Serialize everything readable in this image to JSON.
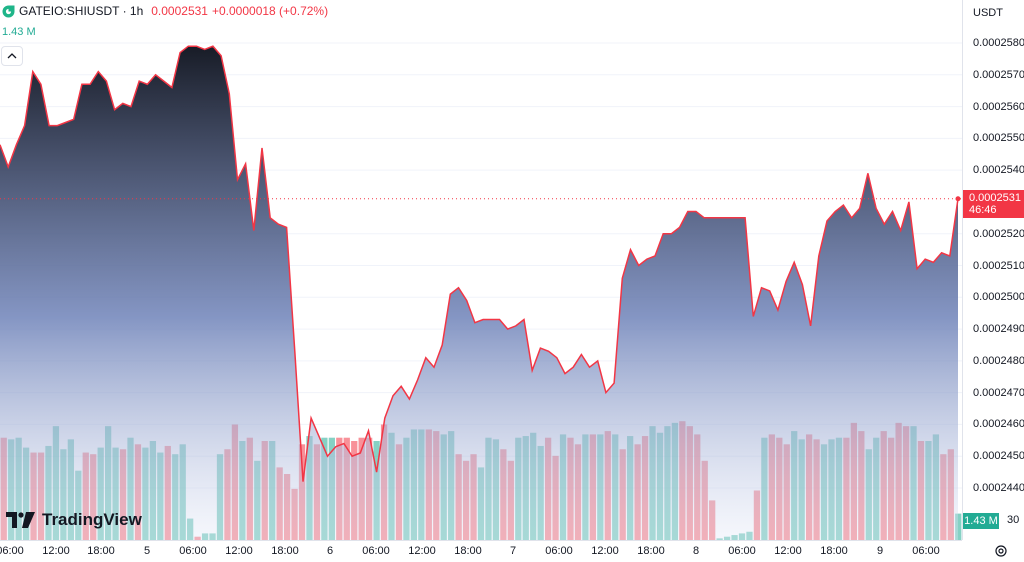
{
  "header": {
    "symbol": "GATEIO:SHIUSDT · 1h",
    "price": "0.0002531",
    "change": "+0.0000018 (+0.72%)"
  },
  "volume_label": "1.43 M",
  "branding": {
    "logo_text": "TradingView"
  },
  "price_axis": {
    "currency": "USDT",
    "last_price": "0.0002531",
    "countdown": "46:46",
    "volume_tag": "1.43 M",
    "bottom_partial_label": "30",
    "ticks": [
      "0.0002580",
      "0.0002570",
      "0.0002560",
      "0.0002550",
      "0.0002540",
      "0.0002520",
      "0.0002510",
      "0.0002500",
      "0.0002490",
      "0.0002480",
      "0.0002470",
      "0.0002460",
      "0.0002450",
      "0.0002440"
    ]
  },
  "time_axis": {
    "labels": [
      "06:00",
      "12:00",
      "18:00",
      "5",
      "06:00",
      "12:00",
      "18:00",
      "6",
      "06:00",
      "12:00",
      "18:00",
      "7",
      "06:00",
      "12:00",
      "18:00",
      "8",
      "06:00",
      "12:00",
      "18:00",
      "9",
      "06:00"
    ]
  },
  "colors": {
    "line": "#f23645",
    "area_top": "#131722",
    "area_bottom": "#e3e8f7",
    "vol_up": "#22ab94",
    "vol_down": "#f23645",
    "price_tag": "#f23645"
  },
  "chart_data": {
    "type": "area",
    "y_unit": "USDT",
    "ylim": [
      0.000243,
      0.000259
    ],
    "price_series": [
      0.0002548,
      0.0002541,
      0.0002548,
      0.0002554,
      0.0002571,
      0.0002567,
      0.0002554,
      0.0002554,
      0.0002555,
      0.0002556,
      0.0002567,
      0.0002567,
      0.0002571,
      0.0002568,
      0.0002559,
      0.0002561,
      0.000256,
      0.0002568,
      0.0002567,
      0.000257,
      0.0002568,
      0.0002566,
      0.0002577,
      0.0002579,
      0.0002579,
      0.0002578,
      0.0002579,
      0.0002576,
      0.0002564,
      0.0002537,
      0.0002542,
      0.0002521,
      0.0002547,
      0.0002525,
      0.0002523,
      0.0002522,
      0.0002483,
      0.0002442,
      0.0002462,
      0.0002456,
      0.000245,
      0.0002453,
      0.0002454,
      0.000245,
      0.0002451,
      0.0002458,
      0.0002445,
      0.0002462,
      0.0002469,
      0.0002472,
      0.0002468,
      0.0002474,
      0.0002481,
      0.0002478,
      0.0002485,
      0.0002501,
      0.0002503,
      0.0002499,
      0.0002492,
      0.0002493,
      0.0002493,
      0.0002493,
      0.000249,
      0.0002491,
      0.0002493,
      0.0002477,
      0.0002484,
      0.0002483,
      0.0002481,
      0.0002476,
      0.0002478,
      0.0002482,
      0.0002478,
      0.000248,
      0.000247,
      0.0002473,
      0.0002506,
      0.0002515,
      0.000251,
      0.0002512,
      0.0002513,
      0.000252,
      0.000252,
      0.0002522,
      0.0002527,
      0.0002527,
      0.0002525,
      0.0002525,
      0.0002525,
      0.0002525,
      0.0002525,
      0.0002525,
      0.0002494,
      0.0002503,
      0.0002502,
      0.0002496,
      0.0002505,
      0.0002511,
      0.0002504,
      0.0002491,
      0.0002513,
      0.0002524,
      0.0002527,
      0.0002529,
      0.0002525,
      0.0002528,
      0.0002539,
      0.0002528,
      0.0002523,
      0.0002527,
      0.0002521,
      0.000253,
      0.0002509,
      0.0002512,
      0.0002511,
      0.0002514,
      0.0002513,
      0.0002531
    ],
    "volume_series": [
      {
        "v": 0.62,
        "up": false
      },
      {
        "v": 0.61,
        "up": true
      },
      {
        "v": 0.62,
        "up": true
      },
      {
        "v": 0.56,
        "up": true
      },
      {
        "v": 0.53,
        "up": false
      },
      {
        "v": 0.53,
        "up": false
      },
      {
        "v": 0.57,
        "up": true
      },
      {
        "v": 0.69,
        "up": true
      },
      {
        "v": 0.55,
        "up": true
      },
      {
        "v": 0.61,
        "up": true
      },
      {
        "v": 0.42,
        "up": true
      },
      {
        "v": 0.53,
        "up": false
      },
      {
        "v": 0.52,
        "up": false
      },
      {
        "v": 0.56,
        "up": true
      },
      {
        "v": 0.69,
        "up": true
      },
      {
        "v": 0.56,
        "up": true
      },
      {
        "v": 0.55,
        "up": false
      },
      {
        "v": 0.62,
        "up": true
      },
      {
        "v": 0.58,
        "up": false
      },
      {
        "v": 0.56,
        "up": true
      },
      {
        "v": 0.6,
        "up": true
      },
      {
        "v": 0.53,
        "up": true
      },
      {
        "v": 0.57,
        "up": false
      },
      {
        "v": 0.52,
        "up": true
      },
      {
        "v": 0.58,
        "up": true
      },
      {
        "v": 0.13,
        "up": true
      },
      {
        "v": 0.02,
        "up": false
      },
      {
        "v": 0.04,
        "up": true
      },
      {
        "v": 0.04,
        "up": true
      },
      {
        "v": 0.52,
        "up": true
      },
      {
        "v": 0.55,
        "up": false
      },
      {
        "v": 0.7,
        "up": false
      },
      {
        "v": 0.6,
        "up": true
      },
      {
        "v": 0.62,
        "up": false
      },
      {
        "v": 0.48,
        "up": true
      },
      {
        "v": 0.6,
        "up": false
      },
      {
        "v": 0.6,
        "up": true
      },
      {
        "v": 0.44,
        "up": false
      },
      {
        "v": 0.4,
        "up": false
      },
      {
        "v": 0.31,
        "up": false
      },
      {
        "v": 0.58,
        "up": false
      },
      {
        "v": 0.63,
        "up": true
      },
      {
        "v": 0.58,
        "up": false
      },
      {
        "v": 0.62,
        "up": true
      },
      {
        "v": 0.62,
        "up": true
      },
      {
        "v": 0.62,
        "up": false
      },
      {
        "v": 0.62,
        "up": false
      },
      {
        "v": 0.6,
        "up": false
      },
      {
        "v": 0.62,
        "up": false
      },
      {
        "v": 0.62,
        "up": false
      },
      {
        "v": 0.6,
        "up": true
      },
      {
        "v": 0.7,
        "up": false
      },
      {
        "v": 0.65,
        "up": true
      },
      {
        "v": 0.58,
        "up": false
      },
      {
        "v": 0.62,
        "up": true
      },
      {
        "v": 0.67,
        "up": true
      },
      {
        "v": 0.67,
        "up": true
      },
      {
        "v": 0.67,
        "up": false
      },
      {
        "v": 0.66,
        "up": false
      },
      {
        "v": 0.64,
        "up": true
      },
      {
        "v": 0.66,
        "up": true
      },
      {
        "v": 0.52,
        "up": false
      },
      {
        "v": 0.48,
        "up": false
      },
      {
        "v": 0.52,
        "up": false
      },
      {
        "v": 0.44,
        "up": true
      },
      {
        "v": 0.62,
        "up": true
      },
      {
        "v": 0.61,
        "up": true
      },
      {
        "v": 0.55,
        "up": false
      },
      {
        "v": 0.48,
        "up": false
      },
      {
        "v": 0.62,
        "up": true
      },
      {
        "v": 0.63,
        "up": true
      },
      {
        "v": 0.65,
        "up": true
      },
      {
        "v": 0.57,
        "up": true
      },
      {
        "v": 0.62,
        "up": false
      },
      {
        "v": 0.51,
        "up": false
      },
      {
        "v": 0.64,
        "up": true
      },
      {
        "v": 0.62,
        "up": false
      },
      {
        "v": 0.58,
        "up": false
      },
      {
        "v": 0.64,
        "up": true
      },
      {
        "v": 0.64,
        "up": false
      },
      {
        "v": 0.64,
        "up": true
      },
      {
        "v": 0.66,
        "up": false
      },
      {
        "v": 0.64,
        "up": true
      },
      {
        "v": 0.55,
        "up": false
      },
      {
        "v": 0.63,
        "up": true
      },
      {
        "v": 0.58,
        "up": false
      },
      {
        "v": 0.63,
        "up": false
      },
      {
        "v": 0.69,
        "up": true
      },
      {
        "v": 0.65,
        "up": true
      },
      {
        "v": 0.69,
        "up": true
      },
      {
        "v": 0.71,
        "up": true
      },
      {
        "v": 0.72,
        "up": false
      },
      {
        "v": 0.69,
        "up": false
      },
      {
        "v": 0.64,
        "up": false
      },
      {
        "v": 0.48,
        "up": false
      },
      {
        "v": 0.24,
        "up": false
      },
      {
        "v": 0.01,
        "up": true
      },
      {
        "v": 0.02,
        "up": true
      },
      {
        "v": 0.03,
        "up": true
      },
      {
        "v": 0.04,
        "up": true
      },
      {
        "v": 0.05,
        "up": true
      },
      {
        "v": 0.3,
        "up": false
      },
      {
        "v": 0.62,
        "up": true
      },
      {
        "v": 0.64,
        "up": false
      },
      {
        "v": 0.62,
        "up": false
      },
      {
        "v": 0.58,
        "up": false
      },
      {
        "v": 0.66,
        "up": true
      },
      {
        "v": 0.61,
        "up": true
      },
      {
        "v": 0.64,
        "up": false
      },
      {
        "v": 0.61,
        "up": false
      },
      {
        "v": 0.58,
        "up": true
      },
      {
        "v": 0.61,
        "up": true
      },
      {
        "v": 0.62,
        "up": true
      },
      {
        "v": 0.62,
        "up": false
      },
      {
        "v": 0.71,
        "up": false
      },
      {
        "v": 0.66,
        "up": false
      },
      {
        "v": 0.55,
        "up": true
      },
      {
        "v": 0.62,
        "up": true
      },
      {
        "v": 0.66,
        "up": false
      },
      {
        "v": 0.62,
        "up": false
      },
      {
        "v": 0.71,
        "up": false
      },
      {
        "v": 0.69,
        "up": false
      },
      {
        "v": 0.69,
        "up": true
      },
      {
        "v": 0.6,
        "up": false
      },
      {
        "v": 0.6,
        "up": true
      },
      {
        "v": 0.64,
        "up": true
      },
      {
        "v": 0.52,
        "up": false
      },
      {
        "v": 0.55,
        "up": false
      },
      {
        "v": 0.16,
        "up": true
      }
    ]
  }
}
